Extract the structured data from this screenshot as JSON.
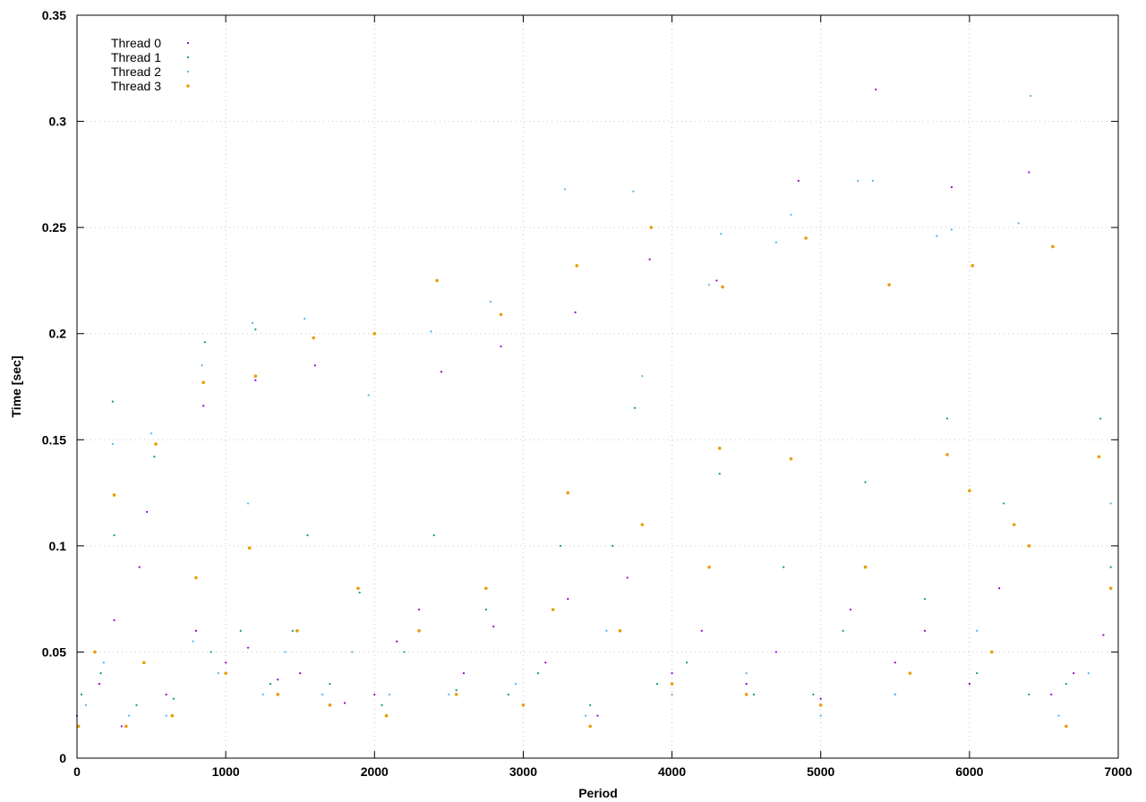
{
  "chart_data": {
    "type": "scatter",
    "title": "",
    "xlabel": "Period",
    "ylabel": "Time [sec]",
    "xlim": [
      0,
      7000
    ],
    "ylim": [
      0,
      0.35
    ],
    "xticks": [
      0,
      1000,
      2000,
      3000,
      4000,
      5000,
      6000,
      7000
    ],
    "xtick_labels": [
      "0",
      "1000",
      "2000",
      "3000",
      "4000",
      "5000",
      "6000",
      "7000"
    ],
    "yticks": [
      0,
      0.05,
      0.1,
      0.15,
      0.2,
      0.25,
      0.3,
      0.35
    ],
    "ytick_labels": [
      "0",
      "0.05",
      "0.1",
      "0.15",
      "0.2",
      "0.25",
      "0.3",
      "0.35"
    ],
    "grid": true,
    "legend_position": "top-left",
    "series": [
      {
        "name": "Thread 0",
        "color": "#9400d3",
        "marker": "small-dot",
        "points": [
          [
            0,
            0.02
          ],
          [
            150,
            0.035
          ],
          [
            250,
            0.065
          ],
          [
            300,
            0.015
          ],
          [
            420,
            0.09
          ],
          [
            470,
            0.116
          ],
          [
            600,
            0.03
          ],
          [
            800,
            0.06
          ],
          [
            850,
            0.166
          ],
          [
            1000,
            0.045
          ],
          [
            1150,
            0.052
          ],
          [
            1200,
            0.178
          ],
          [
            1350,
            0.037
          ],
          [
            1500,
            0.04
          ],
          [
            1600,
            0.185
          ],
          [
            1800,
            0.026
          ],
          [
            2000,
            0.03
          ],
          [
            2150,
            0.055
          ],
          [
            2300,
            0.07
          ],
          [
            2450,
            0.182
          ],
          [
            2600,
            0.04
          ],
          [
            2800,
            0.062
          ],
          [
            2850,
            0.194
          ],
          [
            3000,
            0.025
          ],
          [
            3150,
            0.045
          ],
          [
            3300,
            0.075
          ],
          [
            3350,
            0.21
          ],
          [
            3500,
            0.02
          ],
          [
            3700,
            0.085
          ],
          [
            3850,
            0.235
          ],
          [
            4000,
            0.04
          ],
          [
            4200,
            0.06
          ],
          [
            4300,
            0.225
          ],
          [
            4500,
            0.035
          ],
          [
            4700,
            0.05
          ],
          [
            4850,
            0.272
          ],
          [
            5000,
            0.028
          ],
          [
            5200,
            0.07
          ],
          [
            5370,
            0.315
          ],
          [
            5500,
            0.045
          ],
          [
            5700,
            0.06
          ],
          [
            5880,
            0.269
          ],
          [
            6000,
            0.035
          ],
          [
            6200,
            0.08
          ],
          [
            6400,
            0.276
          ],
          [
            6550,
            0.03
          ],
          [
            6700,
            0.04
          ],
          [
            6900,
            0.058
          ]
        ]
      },
      {
        "name": "Thread 1",
        "color": "#009e73",
        "marker": "small-dot",
        "points": [
          [
            30,
            0.03
          ],
          [
            160,
            0.04
          ],
          [
            240,
            0.168
          ],
          [
            250,
            0.105
          ],
          [
            400,
            0.025
          ],
          [
            520,
            0.142
          ],
          [
            650,
            0.028
          ],
          [
            860,
            0.196
          ],
          [
            900,
            0.05
          ],
          [
            1100,
            0.06
          ],
          [
            1200,
            0.202
          ],
          [
            1300,
            0.035
          ],
          [
            1450,
            0.06
          ],
          [
            1550,
            0.105
          ],
          [
            1700,
            0.035
          ],
          [
            1900,
            0.078
          ],
          [
            2050,
            0.025
          ],
          [
            2200,
            0.05
          ],
          [
            2400,
            0.105
          ],
          [
            2550,
            0.032
          ],
          [
            2750,
            0.07
          ],
          [
            2900,
            0.03
          ],
          [
            3100,
            0.04
          ],
          [
            3250,
            0.1
          ],
          [
            3450,
            0.025
          ],
          [
            3600,
            0.1
          ],
          [
            3750,
            0.165
          ],
          [
            3900,
            0.035
          ],
          [
            4100,
            0.045
          ],
          [
            4320,
            0.134
          ],
          [
            4550,
            0.03
          ],
          [
            4750,
            0.09
          ],
          [
            4950,
            0.03
          ],
          [
            5150,
            0.06
          ],
          [
            5300,
            0.13
          ],
          [
            5500,
            0.03
          ],
          [
            5700,
            0.075
          ],
          [
            5850,
            0.16
          ],
          [
            6050,
            0.04
          ],
          [
            6230,
            0.12
          ],
          [
            6400,
            0.03
          ],
          [
            6650,
            0.035
          ],
          [
            6880,
            0.16
          ],
          [
            6950,
            0.09
          ]
        ]
      },
      {
        "name": "Thread 2",
        "color": "#56b4e9",
        "marker": "small-dot",
        "points": [
          [
            60,
            0.025
          ],
          [
            180,
            0.045
          ],
          [
            240,
            0.148
          ],
          [
            350,
            0.02
          ],
          [
            500,
            0.153
          ],
          [
            600,
            0.02
          ],
          [
            780,
            0.055
          ],
          [
            840,
            0.185
          ],
          [
            950,
            0.04
          ],
          [
            1150,
            0.12
          ],
          [
            1180,
            0.205
          ],
          [
            1250,
            0.03
          ],
          [
            1400,
            0.05
          ],
          [
            1530,
            0.207
          ],
          [
            1650,
            0.03
          ],
          [
            1850,
            0.05
          ],
          [
            1960,
            0.171
          ],
          [
            2100,
            0.03
          ],
          [
            2300,
            0.06
          ],
          [
            2380,
            0.201
          ],
          [
            2500,
            0.03
          ],
          [
            2780,
            0.215
          ],
          [
            2950,
            0.035
          ],
          [
            3280,
            0.268
          ],
          [
            3420,
            0.02
          ],
          [
            3560,
            0.06
          ],
          [
            3740,
            0.267
          ],
          [
            3800,
            0.18
          ],
          [
            4000,
            0.03
          ],
          [
            4250,
            0.223
          ],
          [
            4330,
            0.247
          ],
          [
            4500,
            0.04
          ],
          [
            4700,
            0.243
          ],
          [
            4800,
            0.256
          ],
          [
            5000,
            0.02
          ],
          [
            5250,
            0.272
          ],
          [
            5350,
            0.272
          ],
          [
            5500,
            0.03
          ],
          [
            5780,
            0.246
          ],
          [
            5880,
            0.249
          ],
          [
            6050,
            0.06
          ],
          [
            6330,
            0.252
          ],
          [
            6410,
            0.312
          ],
          [
            6600,
            0.02
          ],
          [
            6800,
            0.04
          ],
          [
            6950,
            0.12
          ]
        ]
      },
      {
        "name": "Thread 3",
        "color": "#e69f00",
        "marker": "dot",
        "points": [
          [
            10,
            0.015
          ],
          [
            120,
            0.05
          ],
          [
            250,
            0.124
          ],
          [
            330,
            0.015
          ],
          [
            450,
            0.045
          ],
          [
            530,
            0.148
          ],
          [
            640,
            0.02
          ],
          [
            800,
            0.085
          ],
          [
            850,
            0.177
          ],
          [
            1000,
            0.04
          ],
          [
            1160,
            0.099
          ],
          [
            1200,
            0.18
          ],
          [
            1350,
            0.03
          ],
          [
            1480,
            0.06
          ],
          [
            1590,
            0.198
          ],
          [
            1700,
            0.025
          ],
          [
            1890,
            0.08
          ],
          [
            2000,
            0.2
          ],
          [
            2080,
            0.02
          ],
          [
            2300,
            0.06
          ],
          [
            2420,
            0.225
          ],
          [
            2550,
            0.03
          ],
          [
            2750,
            0.08
          ],
          [
            2850,
            0.209
          ],
          [
            3000,
            0.025
          ],
          [
            3200,
            0.07
          ],
          [
            3300,
            0.125
          ],
          [
            3360,
            0.232
          ],
          [
            3450,
            0.015
          ],
          [
            3650,
            0.06
          ],
          [
            3800,
            0.11
          ],
          [
            3860,
            0.25
          ],
          [
            4000,
            0.035
          ],
          [
            4250,
            0.09
          ],
          [
            4320,
            0.146
          ],
          [
            4340,
            0.222
          ],
          [
            4500,
            0.03
          ],
          [
            4800,
            0.141
          ],
          [
            4900,
            0.245
          ],
          [
            5000,
            0.025
          ],
          [
            5300,
            0.09
          ],
          [
            5460,
            0.223
          ],
          [
            5600,
            0.04
          ],
          [
            5850,
            0.143
          ],
          [
            6000,
            0.126
          ],
          [
            6020,
            0.232
          ],
          [
            6150,
            0.05
          ],
          [
            6300,
            0.11
          ],
          [
            6400,
            0.1
          ],
          [
            6560,
            0.241
          ],
          [
            6650,
            0.015
          ],
          [
            6870,
            0.142
          ],
          [
            6950,
            0.08
          ]
        ]
      }
    ]
  }
}
